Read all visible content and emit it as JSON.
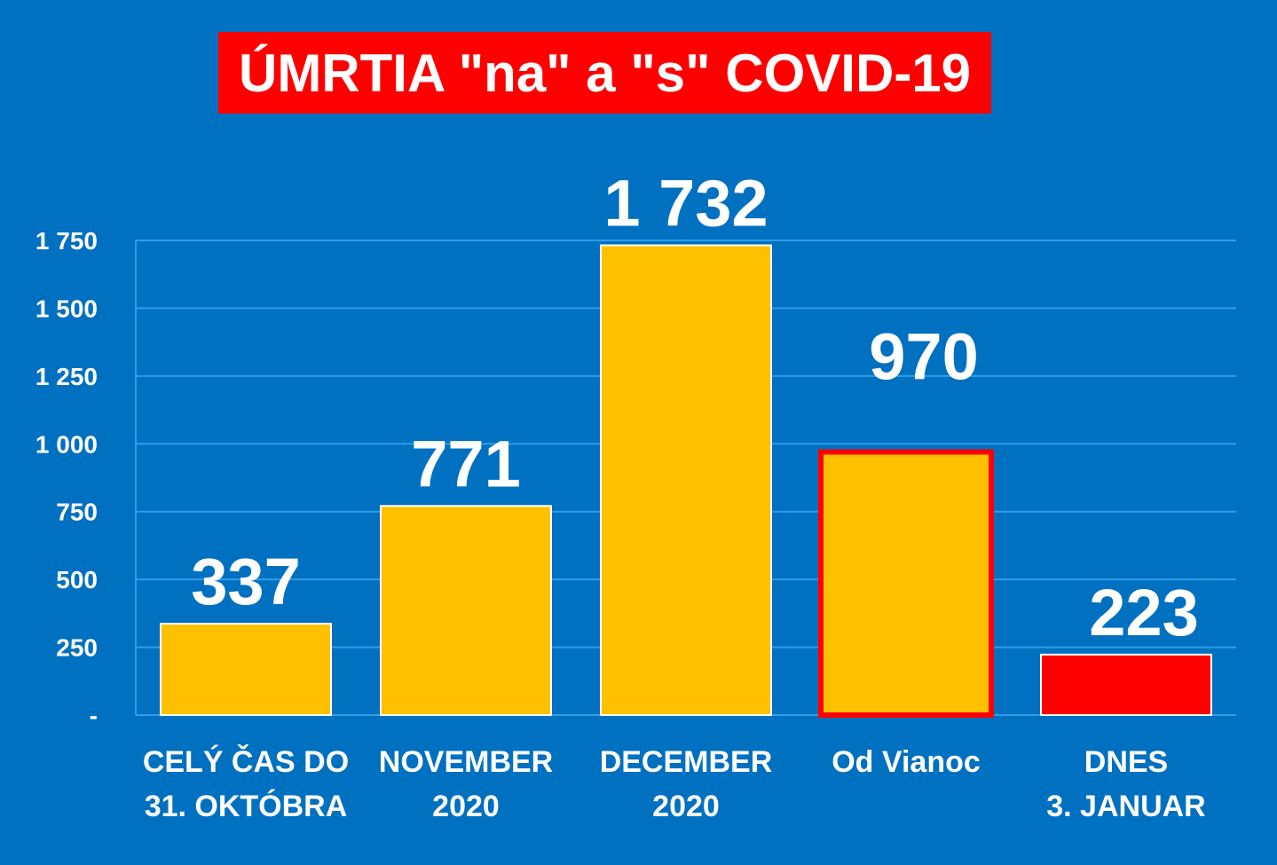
{
  "title": "ÚMRTIA \"na\" a \"s\" COVID-19",
  "colors": {
    "background": "#0070c0",
    "title_box": "#ff0000",
    "bar_default": "#ffc000",
    "bar_today": "#ff0000",
    "highlight_border": "#ff0000",
    "grid": "#2e9ee8"
  },
  "chart_data": {
    "type": "bar",
    "categories": [
      [
        "CELÝ ČAS DO",
        "31. OKTÓBRA"
      ],
      [
        "NOVEMBER",
        "2020"
      ],
      [
        "DECEMBER",
        "2020"
      ],
      [
        "Od Vianoc"
      ],
      [
        "DNES",
        "3. JANUAR"
      ]
    ],
    "values": [
      337,
      771,
      1732,
      970,
      223
    ],
    "data_labels": [
      "337",
      "771",
      "1 732",
      "970",
      "223"
    ],
    "bar_colors": [
      "#ffc000",
      "#ffc000",
      "#ffc000",
      "#ffc000",
      "#ff0000"
    ],
    "highlighted": [
      false,
      false,
      false,
      true,
      false
    ],
    "ylim": [
      0,
      1750
    ],
    "yticks": [
      0,
      250,
      500,
      750,
      1000,
      1250,
      1500,
      1750
    ],
    "ytick_labels": [
      "-",
      "250",
      "500",
      "750",
      "1 000",
      "1 250",
      "1 500",
      "1 750"
    ],
    "grid": true,
    "legend": "none",
    "xlabel": "",
    "ylabel": ""
  }
}
